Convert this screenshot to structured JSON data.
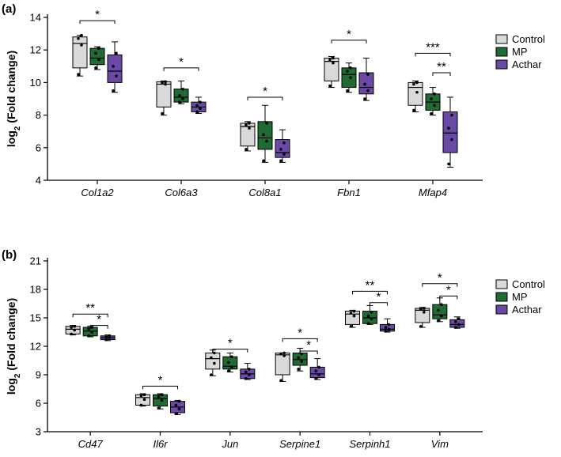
{
  "colors": {
    "Control": "#d9d9d9",
    "MP": "#1f6b34",
    "Acthar": "#6a4aa6",
    "outline": "#000000"
  },
  "legend": [
    "Control",
    "MP",
    "Acthar"
  ],
  "chart_data": [
    {
      "panel": "(a)",
      "type": "box",
      "ylabel_main": "log",
      "ylabel_sub": "2",
      "ylabel_rest": " (Fold change)",
      "ylim": [
        4,
        14
      ],
      "yticks": [
        "4",
        "6",
        "8",
        "10",
        "12",
        "14"
      ],
      "categories": [
        "Col1a2",
        "Col6a3",
        "Col8a1",
        "Fbn1",
        "Mfap4"
      ],
      "series": [
        {
          "name": "Control",
          "boxes": [
            {
              "min": 10.4,
              "q1": 10.9,
              "median": 12.4,
              "q3": 12.8,
              "max": 12.9,
              "points": [
                10.5,
                12.3,
                12.7,
                12.9
              ]
            },
            {
              "min": 8.0,
              "q1": 8.5,
              "median": 9.9,
              "q3": 10.05,
              "max": 10.1,
              "points": [
                8.1,
                9.9,
                10.0,
                10.05
              ]
            },
            {
              "min": 5.8,
              "q1": 6.1,
              "median": 7.3,
              "q3": 7.5,
              "max": 7.6,
              "points": [
                5.9,
                7.2,
                7.4,
                7.5
              ]
            },
            {
              "min": 9.7,
              "q1": 10.1,
              "median": 11.3,
              "q3": 11.5,
              "max": 11.6,
              "points": [
                9.8,
                11.2,
                11.4,
                11.5
              ]
            },
            {
              "min": 8.2,
              "q1": 8.6,
              "median": 9.7,
              "q3": 10.0,
              "max": 10.1,
              "points": [
                8.3,
                9.4,
                9.9,
                10.0
              ]
            }
          ]
        },
        {
          "name": "MP",
          "boxes": [
            {
              "min": 10.8,
              "q1": 11.1,
              "median": 11.5,
              "q3": 12.1,
              "max": 12.2,
              "points": [
                10.9,
                11.4,
                11.8,
                12.1
              ]
            },
            {
              "min": 8.7,
              "q1": 8.8,
              "median": 9.1,
              "q3": 9.6,
              "max": 10.1,
              "points": [
                8.8,
                9.0,
                9.2,
                9.6
              ]
            },
            {
              "min": 5.1,
              "q1": 5.9,
              "median": 6.6,
              "q3": 7.6,
              "max": 8.6,
              "points": [
                5.2,
                6.4,
                6.8,
                7.5
              ]
            },
            {
              "min": 9.4,
              "q1": 9.7,
              "median": 10.5,
              "q3": 10.9,
              "max": 11.2,
              "points": [
                9.5,
                10.3,
                10.7,
                10.9
              ]
            },
            {
              "min": 8.0,
              "q1": 8.3,
              "median": 8.8,
              "q3": 9.3,
              "max": 9.7,
              "points": [
                8.1,
                8.6,
                9.0,
                9.3
              ]
            }
          ]
        },
        {
          "name": "Acthar",
          "boxes": [
            {
              "min": 9.4,
              "q1": 10.0,
              "median": 10.7,
              "q3": 11.7,
              "max": 12.5,
              "points": [
                9.5,
                10.4,
                11.0,
                11.8
              ]
            },
            {
              "min": 8.1,
              "q1": 8.2,
              "median": 8.5,
              "q3": 8.8,
              "max": 9.1,
              "points": [
                8.2,
                8.4,
                8.6,
                8.8
              ]
            },
            {
              "min": 5.1,
              "q1": 5.4,
              "median": 5.7,
              "q3": 6.5,
              "max": 7.1,
              "points": [
                5.2,
                5.6,
                5.9,
                6.3
              ]
            },
            {
              "min": 8.9,
              "q1": 9.3,
              "median": 9.7,
              "q3": 10.6,
              "max": 11.5,
              "points": [
                9.0,
                9.5,
                9.9,
                10.5
              ]
            },
            {
              "min": 4.8,
              "q1": 5.7,
              "median": 6.9,
              "q3": 8.2,
              "max": 9.1,
              "points": [
                5.0,
                6.5,
                7.2,
                8.0
              ]
            }
          ]
        }
      ],
      "significance": [
        {
          "category": 0,
          "from": "Control",
          "to": "Acthar",
          "y": 13.8,
          "label": "*"
        },
        {
          "category": 1,
          "from": "Control",
          "to": "Acthar",
          "y": 10.9,
          "label": "*"
        },
        {
          "category": 2,
          "from": "Control",
          "to": "Acthar",
          "y": 9.1,
          "label": "*"
        },
        {
          "category": 3,
          "from": "Control",
          "to": "Acthar",
          "y": 12.6,
          "label": "*"
        },
        {
          "category": 4,
          "from": "Control",
          "to": "Acthar",
          "y": 11.8,
          "label": "***"
        },
        {
          "category": 4,
          "from": "MP",
          "to": "Acthar",
          "y": 10.6,
          "label": "**"
        }
      ]
    },
    {
      "panel": "(b)",
      "type": "box",
      "ylabel_main": "log",
      "ylabel_sub": "2",
      "ylabel_rest": " (Fold change)",
      "ylim": [
        3,
        21
      ],
      "yticks": [
        "3",
        "6",
        "9",
        "12",
        "15",
        "18",
        "21"
      ],
      "categories": [
        "Cd47",
        "Il6r",
        "Jun",
        "Serpine1",
        "Serpinh1",
        "Vim"
      ],
      "series": [
        {
          "name": "Control",
          "boxes": [
            {
              "min": 13.2,
              "q1": 13.3,
              "median": 13.8,
              "q3": 14.1,
              "max": 14.2,
              "points": [
                13.3,
                13.7,
                14.0,
                14.1
              ]
            },
            {
              "min": 5.7,
              "q1": 5.8,
              "median": 6.6,
              "q3": 6.9,
              "max": 7.0,
              "points": [
                5.8,
                6.4,
                6.8,
                6.9
              ]
            },
            {
              "min": 8.9,
              "q1": 9.6,
              "median": 10.7,
              "q3": 11.3,
              "max": 11.6,
              "points": [
                9.0,
                10.2,
                10.8,
                11.3
              ]
            },
            {
              "min": 8.3,
              "q1": 9.0,
              "median": 11.1,
              "q3": 11.3,
              "max": 11.3,
              "points": [
                8.4,
                11.0,
                11.2,
                11.3
              ]
            },
            {
              "min": 14.0,
              "q1": 14.3,
              "median": 15.4,
              "q3": 15.7,
              "max": 15.8,
              "points": [
                14.1,
                15.2,
                15.5,
                15.7
              ]
            },
            {
              "min": 14.0,
              "q1": 14.5,
              "median": 15.8,
              "q3": 16.0,
              "max": 16.1,
              "points": [
                14.1,
                15.6,
                15.9,
                16.0
              ]
            }
          ]
        },
        {
          "name": "MP",
          "boxes": [
            {
              "min": 13.0,
              "q1": 13.1,
              "median": 13.6,
              "q3": 14.0,
              "max": 14.1,
              "points": [
                13.1,
                13.5,
                13.8,
                14.0
              ]
            },
            {
              "min": 5.4,
              "q1": 5.7,
              "median": 6.5,
              "q3": 6.9,
              "max": 7.0,
              "points": [
                5.5,
                6.3,
                6.7,
                6.9
              ]
            },
            {
              "min": 9.3,
              "q1": 9.6,
              "median": 9.9,
              "q3": 10.9,
              "max": 11.3,
              "points": [
                9.4,
                9.8,
                10.3,
                10.9
              ]
            },
            {
              "min": 9.4,
              "q1": 10.0,
              "median": 10.6,
              "q3": 11.3,
              "max": 11.8,
              "points": [
                9.6,
                10.4,
                10.8,
                11.2
              ]
            },
            {
              "min": 14.3,
              "q1": 14.4,
              "median": 15.0,
              "q3": 15.7,
              "max": 16.3,
              "points": [
                14.4,
                14.9,
                15.2,
                15.6
              ]
            },
            {
              "min": 14.6,
              "q1": 14.9,
              "median": 15.3,
              "q3": 16.4,
              "max": 17.1,
              "points": [
                14.7,
                15.2,
                15.8,
                16.4
              ]
            }
          ]
        },
        {
          "name": "Acthar",
          "boxes": [
            {
              "min": 12.6,
              "q1": 12.7,
              "median": 12.9,
              "q3": 13.1,
              "max": 13.2,
              "points": [
                12.7,
                12.9,
                13.0,
                13.1
              ]
            },
            {
              "min": 4.8,
              "q1": 5.0,
              "median": 5.6,
              "q3": 6.2,
              "max": 6.3,
              "points": [
                4.9,
                5.4,
                5.8,
                6.2
              ]
            },
            {
              "min": 8.5,
              "q1": 8.6,
              "median": 9.1,
              "q3": 9.6,
              "max": 10.2,
              "points": [
                8.6,
                9.0,
                9.3,
                9.6
              ]
            },
            {
              "min": 8.5,
              "q1": 8.7,
              "median": 9.1,
              "q3": 9.8,
              "max": 10.7,
              "points": [
                8.6,
                9.0,
                9.4,
                9.8
              ]
            },
            {
              "min": 13.5,
              "q1": 13.6,
              "median": 13.8,
              "q3": 14.3,
              "max": 14.9,
              "points": [
                13.6,
                13.8,
                14.0,
                14.3
              ]
            },
            {
              "min": 13.9,
              "q1": 14.0,
              "median": 14.3,
              "q3": 14.8,
              "max": 15.1,
              "points": [
                14.0,
                14.3,
                14.6,
                14.9
              ]
            }
          ]
        }
      ],
      "significance": [
        {
          "category": 0,
          "from": "Control",
          "to": "Acthar",
          "y": 15.4,
          "label": "**"
        },
        {
          "category": 0,
          "from": "MP",
          "to": "Acthar",
          "y": 14.2,
          "label": "*"
        },
        {
          "category": 1,
          "from": "Control",
          "to": "Acthar",
          "y": 7.8,
          "label": "*"
        },
        {
          "category": 2,
          "from": "Control",
          "to": "Acthar",
          "y": 11.7,
          "label": "*"
        },
        {
          "category": 3,
          "from": "Control",
          "to": "Acthar",
          "y": 12.8,
          "label": "*"
        },
        {
          "category": 3,
          "from": "MP",
          "to": "Acthar",
          "y": 11.5,
          "label": "*"
        },
        {
          "category": 4,
          "from": "Control",
          "to": "Acthar",
          "y": 17.8,
          "label": "**"
        },
        {
          "category": 4,
          "from": "MP",
          "to": "Acthar",
          "y": 16.6,
          "label": "*"
        },
        {
          "category": 5,
          "from": "Control",
          "to": "Acthar",
          "y": 18.6,
          "label": "*"
        },
        {
          "category": 5,
          "from": "MP",
          "to": "Acthar",
          "y": 17.3,
          "label": "*"
        }
      ]
    }
  ]
}
